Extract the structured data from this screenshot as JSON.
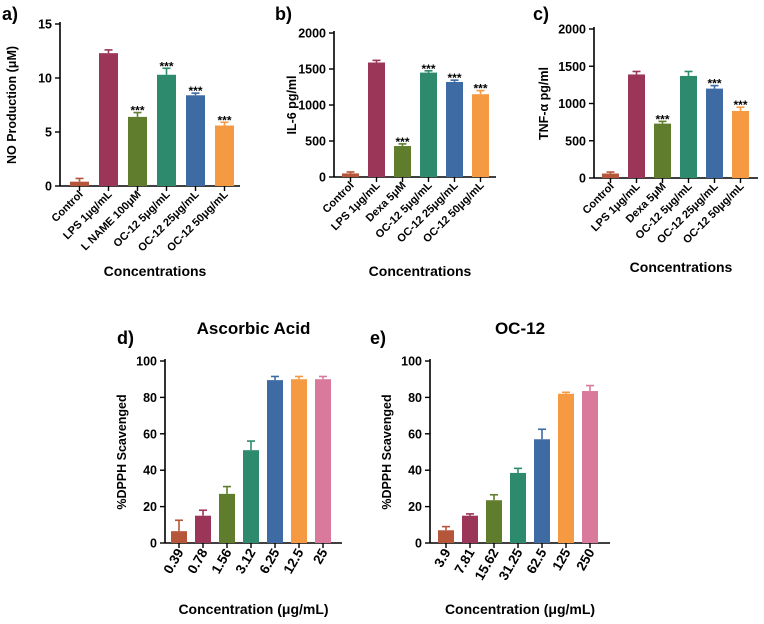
{
  "chart_data": [
    {
      "type": "bar",
      "panel": "a)",
      "categories": [
        "Control",
        "LPS 1μg/mL",
        "L NAME 100μM",
        "OC-12 5μg/mL",
        "OC-12 25μg/mL",
        "OC-12 50μg/mL"
      ],
      "values": [
        0.4,
        12.3,
        6.4,
        10.3,
        8.4,
        5.6
      ],
      "errors": [
        0.3,
        0.3,
        0.4,
        0.6,
        0.2,
        0.3
      ],
      "significance": [
        "",
        "",
        "***",
        "***",
        "***",
        "***"
      ],
      "colors": [
        "#b5563a",
        "#9c3658",
        "#5f7d2d",
        "#2e8a6c",
        "#3e6ba4",
        "#f59a42"
      ],
      "ylabel": "NO Production (μM)",
      "xlabel": "Concentrations",
      "ylim": [
        0,
        15
      ],
      "yticks": [
        0,
        5,
        10,
        15
      ]
    },
    {
      "type": "bar",
      "panel": "b)",
      "categories": [
        "Control",
        "LPS 1μg/mL",
        "Dexa 5μM",
        "OC-12 5μg/mL",
        "OC-12 25μg/mL",
        "OC-12 50μg/mL"
      ],
      "values": [
        50,
        1590,
        430,
        1450,
        1320,
        1150
      ],
      "errors": [
        20,
        30,
        30,
        25,
        25,
        50
      ],
      "significance": [
        "",
        "",
        "***",
        "***",
        "***",
        "***"
      ],
      "colors": [
        "#b5563a",
        "#9c3658",
        "#5f7d2d",
        "#2e8a6c",
        "#3e6ba4",
        "#f59a42"
      ],
      "ylabel": "IL-6 pg/ml",
      "xlabel": "Concentrations",
      "ylim": [
        0,
        2000
      ],
      "yticks": [
        0,
        500,
        1000,
        1500,
        2000
      ]
    },
    {
      "type": "bar",
      "panel": "c)",
      "categories": [
        "Control",
        "LPS 1μg/mL",
        "Dexa 5μM",
        "OC-12 5μg/mL",
        "OC-12 25μg/mL",
        "OC-12 50μg/mL"
      ],
      "values": [
        60,
        1390,
        730,
        1370,
        1200,
        900
      ],
      "errors": [
        20,
        40,
        30,
        60,
        40,
        50
      ],
      "significance": [
        "",
        "",
        "***",
        "",
        "***",
        "***"
      ],
      "colors": [
        "#b5563a",
        "#9c3658",
        "#5f7d2d",
        "#2e8a6c",
        "#3e6ba4",
        "#f59a42"
      ],
      "ylabel": "TNF-α pg/ml",
      "xlabel": "Concentrations",
      "ylim": [
        0,
        2000
      ],
      "yticks": [
        0,
        500,
        1000,
        1500,
        2000
      ]
    },
    {
      "type": "bar",
      "panel": "d)",
      "title": "Ascorbic Acid",
      "categories": [
        "0.39",
        "0.78",
        "1.56",
        "3.12",
        "6.25",
        "12.5",
        "25"
      ],
      "values": [
        6.5,
        15,
        27,
        51,
        89.5,
        90,
        90
      ],
      "errors": [
        6,
        3,
        4,
        5,
        2,
        1.5,
        1.5
      ],
      "colors": [
        "#b5563a",
        "#9c3658",
        "#5f7d2d",
        "#2e8a6c",
        "#3e6ba4",
        "#f59a42",
        "#d97a9c"
      ],
      "ylabel": "%DPPH Scavenged",
      "xlabel": "Concentration (μg/mL)",
      "ylim": [
        0,
        100
      ],
      "yticks": [
        0,
        20,
        40,
        60,
        80,
        100
      ]
    },
    {
      "type": "bar",
      "panel": "e)",
      "title": "OC-12",
      "categories": [
        "3.9",
        "7.81",
        "15.62",
        "31.25",
        "62.5",
        "125",
        "250"
      ],
      "values": [
        7,
        15,
        23.5,
        38.5,
        57,
        82,
        83.5
      ],
      "errors": [
        2,
        1,
        3,
        2.5,
        5.5,
        0.8,
        3
      ],
      "colors": [
        "#b5563a",
        "#9c3658",
        "#5f7d2d",
        "#2e8a6c",
        "#3e6ba4",
        "#f59a42",
        "#d97a9c"
      ],
      "ylabel": "%DPPH Scavenged",
      "xlabel": "Concentration (μg/mL)",
      "ylim": [
        0,
        100
      ],
      "yticks": [
        0,
        20,
        40,
        60,
        80,
        100
      ]
    }
  ]
}
